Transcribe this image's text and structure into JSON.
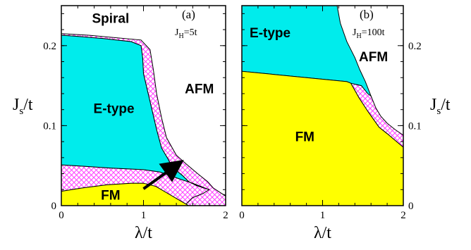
{
  "chart_data": [
    {
      "type": "area",
      "panel_label": "(a)",
      "parameter": {
        "text": "J",
        "sub": "H",
        "rest": "=5t"
      },
      "xlim": [
        0,
        2
      ],
      "ylim": [
        0,
        0.25
      ],
      "x_ticks": [
        "0",
        "1",
        "2"
      ],
      "y_ticks": [
        "0",
        "0.1",
        "0.2"
      ],
      "xlabel": {
        "main": "λ/t"
      },
      "ylabel": {
        "main": "J",
        "sub": "s",
        "rest": "/t"
      },
      "regions": [
        {
          "name": "Spiral",
          "label": "Spiral",
          "fill": "hatch",
          "label_at": [
            0.6,
            0.233
          ],
          "polygon": [
            [
              0,
              0.25
            ],
            [
              0,
              0.215
            ],
            [
              0.33,
              0.213
            ],
            [
              0.97,
              0.207
            ],
            [
              1.08,
              0.195
            ],
            [
              1.12,
              0.17
            ],
            [
              1.16,
              0.14
            ],
            [
              1.22,
              0.11
            ],
            [
              1.28,
              0.085
            ],
            [
              1.4,
              0.063
            ],
            [
              1.52,
              0.052
            ],
            [
              1.66,
              0.04
            ],
            [
              1.78,
              0.03
            ],
            [
              1.85,
              0.022
            ],
            [
              2,
              0.012
            ],
            [
              2,
              0
            ],
            [
              1.5,
              0
            ],
            [
              1.6,
              0.01
            ],
            [
              1.72,
              0.015
            ],
            [
              1.8,
              0.02
            ],
            [
              1.65,
              0.025
            ],
            [
              1.55,
              0.03
            ],
            [
              1.47,
              0.038
            ],
            [
              1.35,
              0.048
            ],
            [
              1.3,
              0.058
            ],
            [
              1.22,
              0.072
            ],
            [
              1.16,
              0.095
            ],
            [
              1.08,
              0.13
            ],
            [
              1.0,
              0.165
            ],
            [
              0.99,
              0.185
            ],
            [
              0.97,
              0.2
            ],
            [
              0.85,
              0.205
            ],
            [
              0.5,
              0.209
            ],
            [
              0.15,
              0.212
            ],
            [
              0,
              0.213
            ],
            [
              0,
              0.25
            ]
          ]
        },
        {
          "name": "E-type",
          "label": "E-type",
          "fill": "#00ecec",
          "label_at": [
            0.64,
            0.12
          ],
          "polygon": [
            [
              0,
              0.213
            ],
            [
              0.15,
              0.212
            ],
            [
              0.5,
              0.209
            ],
            [
              0.85,
              0.205
            ],
            [
              0.97,
              0.2
            ],
            [
              0.99,
              0.185
            ],
            [
              1.0,
              0.165
            ],
            [
              1.08,
              0.13
            ],
            [
              1.16,
              0.095
            ],
            [
              1.22,
              0.072
            ],
            [
              1.3,
              0.058
            ],
            [
              1.35,
              0.048
            ],
            [
              1.47,
              0.038
            ],
            [
              1.55,
              0.03
            ],
            [
              1.65,
              0.025
            ],
            [
              1.8,
              0.02
            ],
            [
              1.6,
              0.028
            ],
            [
              1.45,
              0.033
            ],
            [
              1.2,
              0.042
            ],
            [
              1.0,
              0.045
            ],
            [
              0.6,
              0.047
            ],
            [
              0.3,
              0.049
            ],
            [
              0,
              0.051
            ]
          ]
        },
        {
          "name": "FM",
          "label": "FM",
          "fill": "#ffff00",
          "label_at": [
            0.6,
            0.012
          ],
          "polygon": [
            [
              0,
              0.018
            ],
            [
              0.25,
              0.022
            ],
            [
              0.55,
              0.026
            ],
            [
              0.85,
              0.028
            ],
            [
              1.0,
              0.028
            ],
            [
              1.15,
              0.024
            ],
            [
              1.3,
              0.015
            ],
            [
              1.45,
              0.006
            ],
            [
              1.55,
              0
            ],
            [
              0,
              0
            ]
          ]
        },
        {
          "name": "AFM",
          "label": "AFM",
          "fill": "#ffffff",
          "label_at": [
            1.68,
            0.145
          ],
          "polygon": []
        }
      ],
      "hatch_band_lower": [
        [
          0,
          0.051
        ],
        [
          0.3,
          0.049
        ],
        [
          0.6,
          0.047
        ],
        [
          1.0,
          0.045
        ],
        [
          1.2,
          0.042
        ],
        [
          1.45,
          0.033
        ],
        [
          1.6,
          0.028
        ],
        [
          1.8,
          0.02
        ],
        [
          2,
          0.013
        ],
        [
          2,
          0
        ],
        [
          1.55,
          0
        ],
        [
          1.45,
          0.006
        ],
        [
          1.3,
          0.015
        ],
        [
          1.15,
          0.024
        ],
        [
          1.0,
          0.028
        ],
        [
          0.85,
          0.028
        ],
        [
          0.55,
          0.026
        ],
        [
          0.25,
          0.022
        ],
        [
          0,
          0.018
        ]
      ],
      "arrow": {
        "from": [
          1.0,
          0.021
        ],
        "to": [
          1.38,
          0.049
        ]
      }
    },
    {
      "type": "area",
      "panel_label": "(b)",
      "parameter": {
        "text": "J",
        "sub": "H",
        "rest": "=100t"
      },
      "xlim": [
        0,
        2
      ],
      "ylim": [
        0,
        0.25
      ],
      "x_ticks": [
        "0",
        "1",
        "2"
      ],
      "y_ticks": [
        "0",
        "0.1",
        "0.2"
      ],
      "xlabel": {
        "main": "λ/t"
      },
      "ylabel": {
        "main": "J",
        "sub": "s",
        "rest": "/t"
      },
      "regions": [
        {
          "name": "E-type",
          "label": "E-type",
          "fill": "#00ecec",
          "label_at": [
            0.35,
            0.215
          ],
          "polygon": [
            [
              0,
              0.25
            ],
            [
              1.18,
              0.25
            ],
            [
              1.22,
              0.228
            ],
            [
              1.3,
              0.205
            ],
            [
              1.4,
              0.185
            ],
            [
              1.46,
              0.17
            ],
            [
              1.53,
              0.155
            ],
            [
              1.6,
              0.137
            ],
            [
              1.56,
              0.14
            ],
            [
              1.48,
              0.15
            ],
            [
              1.35,
              0.153
            ],
            [
              1.3,
              0.155
            ],
            [
              0.8,
              0.16
            ],
            [
              0.4,
              0.164
            ],
            [
              0,
              0.168
            ]
          ]
        },
        {
          "name": "FM",
          "label": "FM",
          "fill": "#ffff00",
          "label_at": [
            0.78,
            0.085
          ],
          "polygon": [
            [
              0,
              0.168
            ],
            [
              0.4,
              0.164
            ],
            [
              0.8,
              0.16
            ],
            [
              1.3,
              0.155
            ],
            [
              1.35,
              0.153
            ],
            [
              1.45,
              0.135
            ],
            [
              1.56,
              0.118
            ],
            [
              1.63,
              0.108
            ],
            [
              1.7,
              0.098
            ],
            [
              1.8,
              0.09
            ],
            [
              2,
              0.073
            ],
            [
              2,
              0
            ],
            [
              0,
              0
            ]
          ]
        },
        {
          "name": "AFM",
          "label": "AFM",
          "fill": "#ffffff",
          "label_at": [
            1.63,
            0.185
          ],
          "polygon": []
        }
      ],
      "hatch_band_lower": [
        [
          1.35,
          0.153
        ],
        [
          1.48,
          0.15
        ],
        [
          1.6,
          0.137
        ],
        [
          1.66,
          0.122
        ],
        [
          1.72,
          0.112
        ],
        [
          1.8,
          0.103
        ],
        [
          1.9,
          0.095
        ],
        [
          2,
          0.088
        ],
        [
          2,
          0.073
        ],
        [
          1.8,
          0.09
        ],
        [
          1.7,
          0.098
        ],
        [
          1.63,
          0.108
        ],
        [
          1.56,
          0.118
        ],
        [
          1.45,
          0.135
        ]
      ]
    }
  ],
  "colors": {
    "e_type": "#00ecec",
    "fm": "#ffff00",
    "hatch": "#ff40ff"
  }
}
